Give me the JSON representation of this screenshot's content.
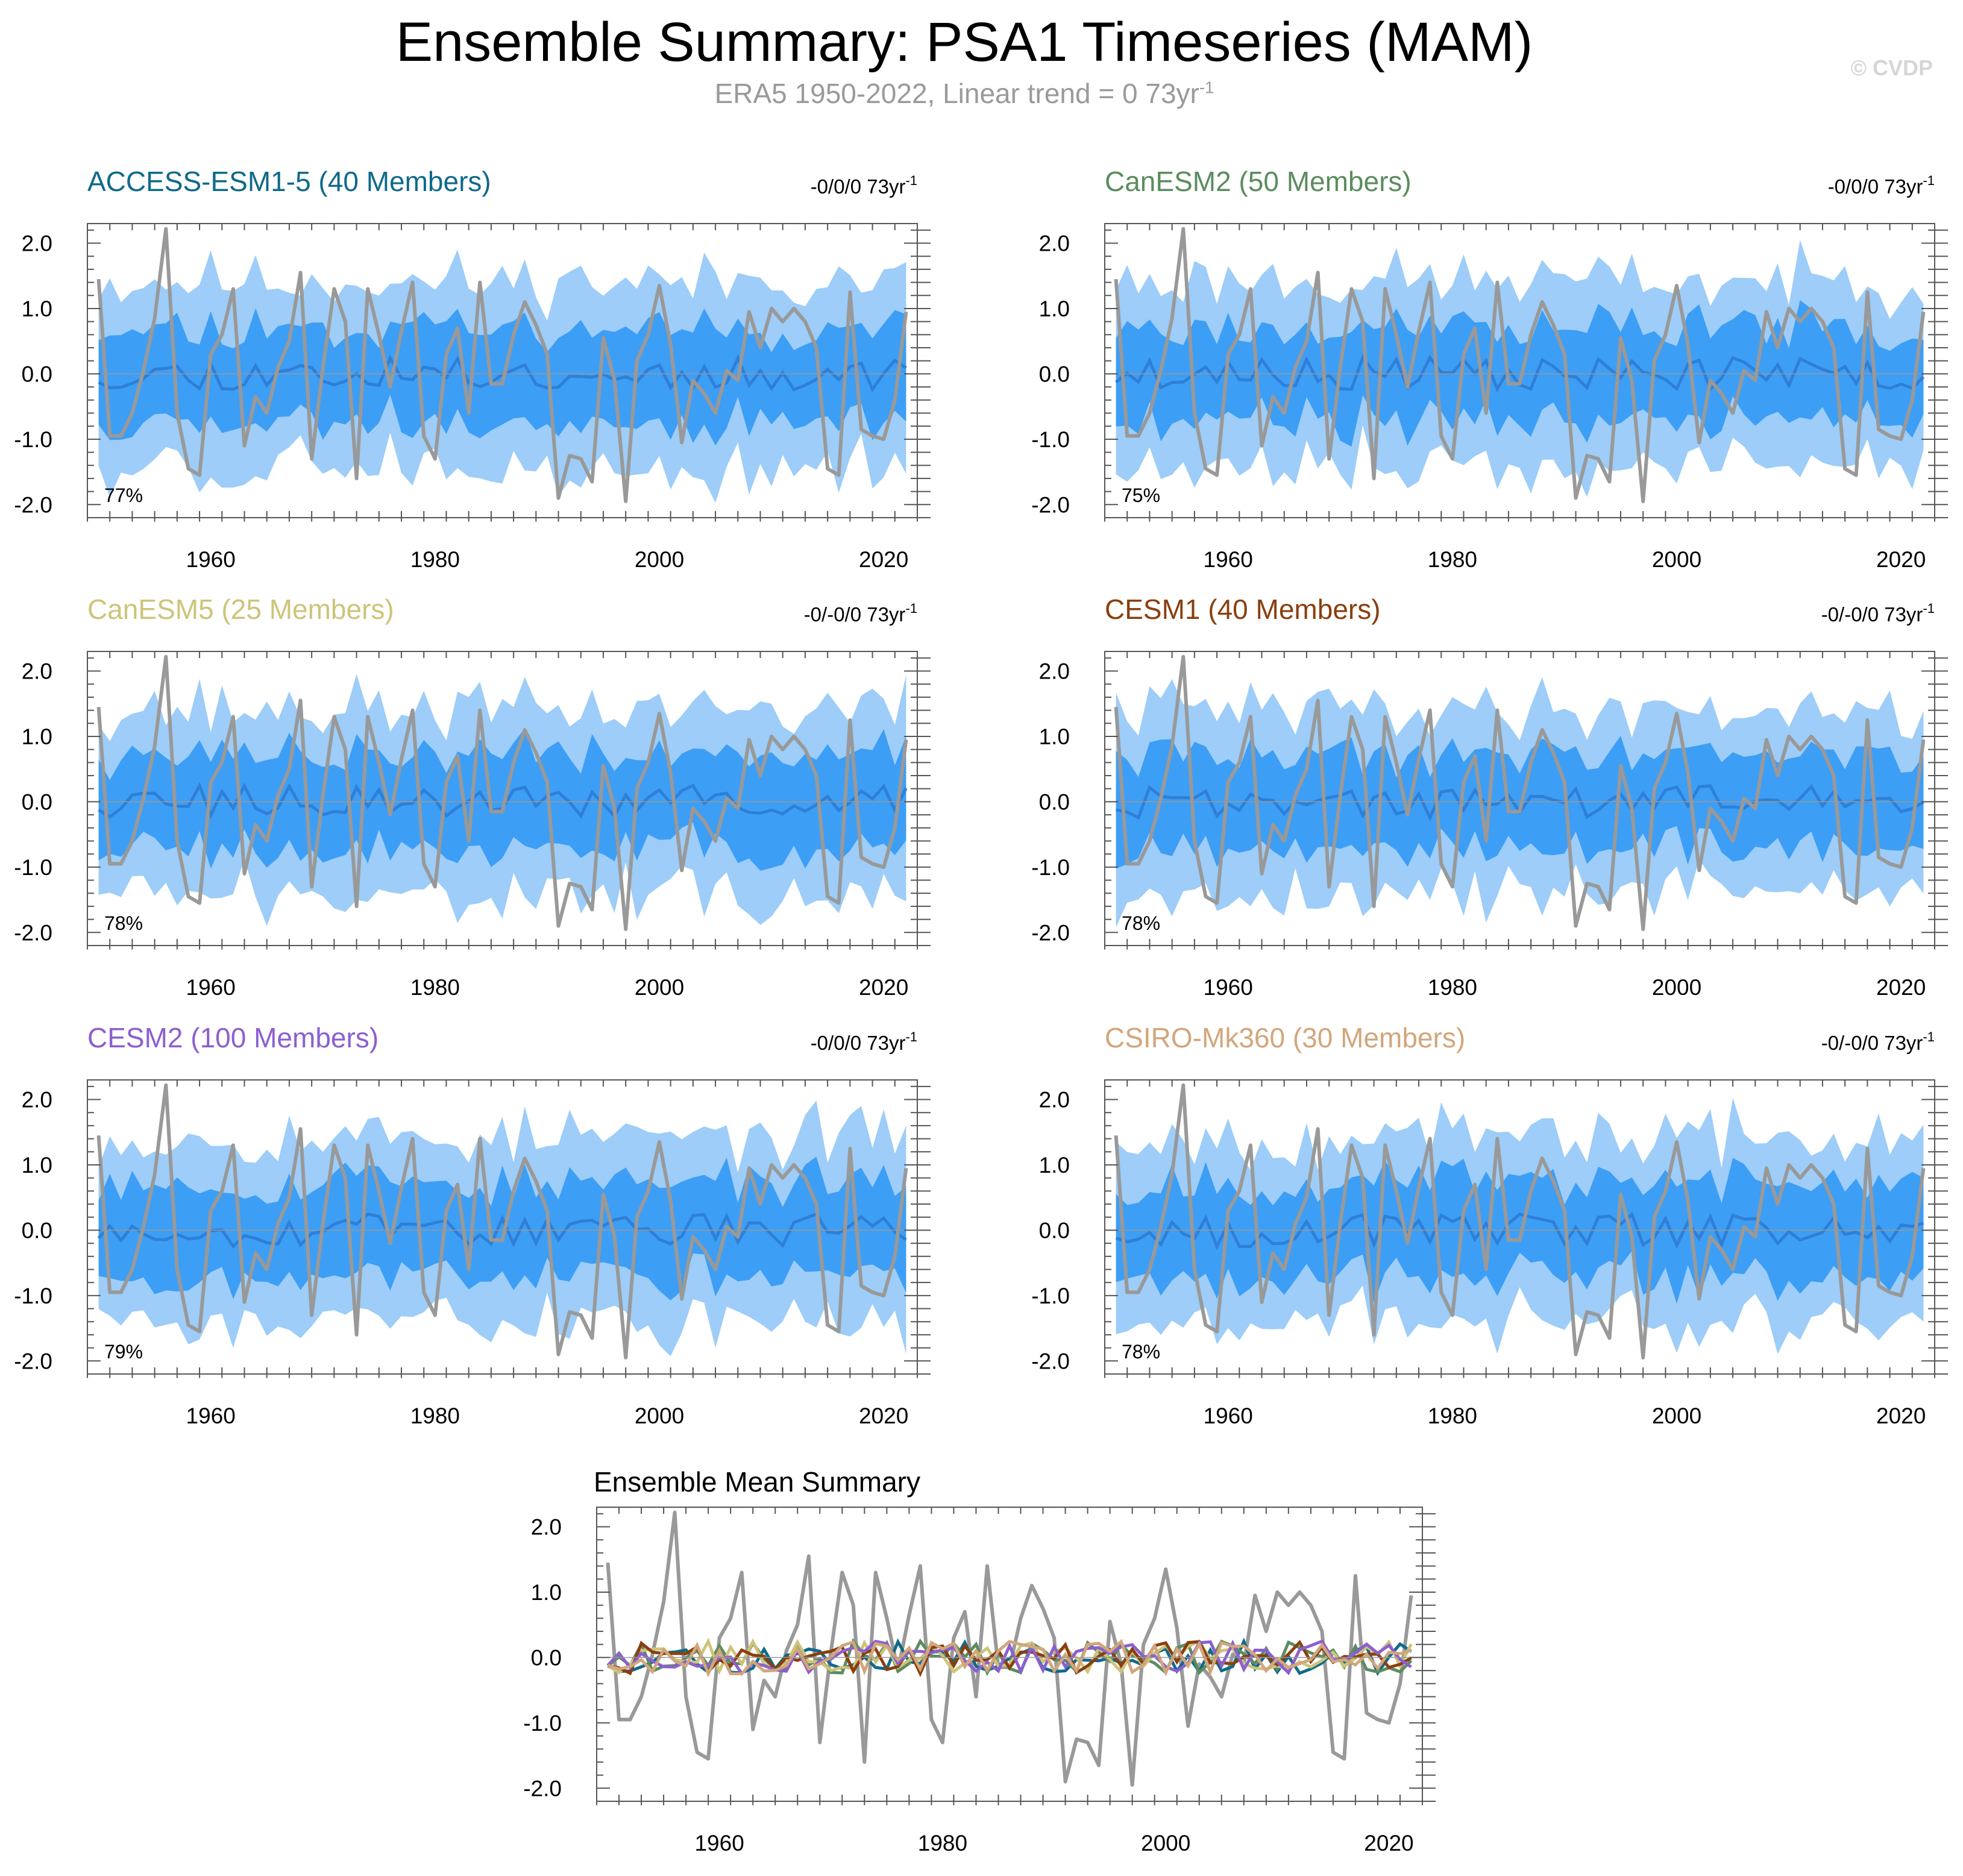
{
  "header": {
    "title": "Ensemble Summary: PSA1 Timeseries (MAM)",
    "subtitle_main": "ERA5 1950-2022, Linear trend = 0 73yr",
    "subtitle_sup": "-1",
    "credit": "© CVDP"
  },
  "colors": {
    "outer_band": "#9dcdf8",
    "inner_band": "#3d9ef5",
    "ensemble_mean": "#2f7fd6",
    "observed": "#999999"
  },
  "chart_data": {
    "type": "line",
    "x_start": 1950,
    "x_end": 2022,
    "xlim": [
      1949,
      2023
    ],
    "ylim": [
      -2.2,
      2.3
    ],
    "x_ticks": [
      "1960",
      "1980",
      "2000",
      "2020"
    ],
    "x_tick_values": [
      1960,
      1980,
      2000,
      2020
    ],
    "y_ticks": [
      "2.0",
      "1.0",
      "0.0",
      "-1.0",
      "-2.0"
    ],
    "y_tick_values": [
      2,
      1,
      0,
      -1,
      -2
    ],
    "observed": {
      "name": "ERA5",
      "values": [
        1.45,
        -0.95,
        -0.95,
        -0.6,
        0.05,
        0.85,
        2.22,
        -0.6,
        -1.45,
        -1.55,
        0.3,
        0.6,
        1.3,
        -1.1,
        -0.35,
        -0.6,
        0.1,
        0.5,
        1.55,
        -1.3,
        0.1,
        1.3,
        0.8,
        -1.6,
        1.3,
        0.6,
        -0.2,
        0.65,
        1.4,
        -0.95,
        -1.3,
        0.3,
        0.7,
        -0.6,
        1.4,
        -0.15,
        -0.15,
        0.6,
        1.1,
        0.75,
        0.3,
        -1.9,
        -1.25,
        -1.3,
        -1.65,
        0.55,
        -0.1,
        -1.95,
        0.2,
        0.6,
        1.35,
        0.45,
        -1.05,
        -0.1,
        -0.3,
        -0.6,
        0.05,
        -0.1,
        0.95,
        0.4,
        1.0,
        0.8,
        1.0,
        0.8,
        0.4,
        -1.45,
        -1.55,
        1.25,
        -0.85,
        -0.95,
        -1.0,
        -0.4,
        0.95
      ]
    },
    "panels": [
      {
        "model": "ACCESS-ESM1-5 (40 Members)",
        "color": "#0f6a8a",
        "trend": "-0/0/0 73yr",
        "trend_sup": "-1",
        "pct": "77%",
        "seed": 11
      },
      {
        "model": "CanESM2 (50 Members)",
        "color": "#5b8c5e",
        "trend": "-0/0/0 73yr",
        "trend_sup": "-1",
        "pct": "75%",
        "seed": 23
      },
      {
        "model": "CanESM5 (25 Members)",
        "color": "#cdc47a",
        "trend": "-0/-0/0 73yr",
        "trend_sup": "-1",
        "pct": "78%",
        "seed": 37
      },
      {
        "model": "CESM1 (40 Members)",
        "color": "#8a3f0e",
        "trend": "-0/-0/0 73yr",
        "trend_sup": "-1",
        "pct": "78%",
        "seed": 41
      },
      {
        "model": "CESM2 (100 Members)",
        "color": "#8c5fd0",
        "trend": "-0/0/0 73yr",
        "trend_sup": "-1",
        "pct": "79%",
        "seed": 53
      },
      {
        "model": "CSIRO-Mk360 (30 Members)",
        "color": "#d2a67c",
        "trend": "-0/-0/0 73yr",
        "trend_sup": "-1",
        "pct": "78%",
        "seed": 67
      }
    ],
    "summary_title": "Ensemble Mean Summary"
  }
}
